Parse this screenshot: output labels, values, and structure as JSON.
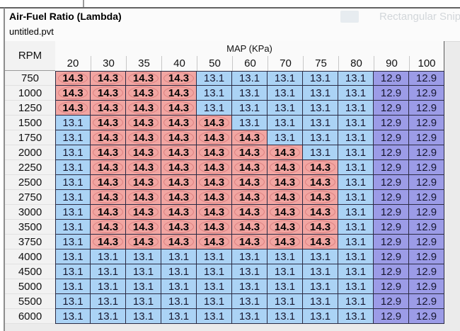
{
  "window": {
    "title": "Air-Fuel Ratio (Lambda)",
    "subtitle": "untitled.pvt"
  },
  "overlay": {
    "tooltip": "Rectangular Snip"
  },
  "colors": {
    "rich_bg": "#f2a6a2",
    "rich_oval": "#dd8282",
    "mid_bg": "#abd3f5",
    "lean_bg": "#9c9ce7",
    "grid_line": "#2b2b44",
    "row_header_bg": "#f2f2f2"
  },
  "value_styles": {
    "14.3": "rich",
    "13.1": "mid",
    "12.9": "lean"
  },
  "table": {
    "corner_label": "RPM",
    "span_label": "MAP (KPa)",
    "columns": [
      "20",
      "30",
      "35",
      "40",
      "50",
      "60",
      "70",
      "75",
      "80",
      "90",
      "100"
    ],
    "rows": [
      {
        "rpm": "750",
        "values": [
          "14.3",
          "14.3",
          "14.3",
          "14.3",
          "13.1",
          "13.1",
          "13.1",
          "13.1",
          "13.1",
          "12.9",
          "12.9"
        ]
      },
      {
        "rpm": "1000",
        "values": [
          "14.3",
          "14.3",
          "14.3",
          "14.3",
          "13.1",
          "13.1",
          "13.1",
          "13.1",
          "13.1",
          "12.9",
          "12.9"
        ]
      },
      {
        "rpm": "1250",
        "values": [
          "14.3",
          "14.3",
          "14.3",
          "14.3",
          "13.1",
          "13.1",
          "13.1",
          "13.1",
          "13.1",
          "12.9",
          "12.9"
        ]
      },
      {
        "rpm": "1500",
        "values": [
          "13.1",
          "14.3",
          "14.3",
          "14.3",
          "14.3",
          "13.1",
          "13.1",
          "13.1",
          "13.1",
          "12.9",
          "12.9"
        ]
      },
      {
        "rpm": "1750",
        "values": [
          "13.1",
          "14.3",
          "14.3",
          "14.3",
          "14.3",
          "14.3",
          "13.1",
          "13.1",
          "13.1",
          "12.9",
          "12.9"
        ]
      },
      {
        "rpm": "2000",
        "values": [
          "13.1",
          "14.3",
          "14.3",
          "14.3",
          "14.3",
          "14.3",
          "14.3",
          "13.1",
          "13.1",
          "12.9",
          "12.9"
        ]
      },
      {
        "rpm": "2250",
        "values": [
          "13.1",
          "14.3",
          "14.3",
          "14.3",
          "14.3",
          "14.3",
          "14.3",
          "14.3",
          "13.1",
          "12.9",
          "12.9"
        ]
      },
      {
        "rpm": "2500",
        "values": [
          "13.1",
          "14.3",
          "14.3",
          "14.3",
          "14.3",
          "14.3",
          "14.3",
          "14.3",
          "13.1",
          "12.9",
          "12.9"
        ]
      },
      {
        "rpm": "2750",
        "values": [
          "13.1",
          "14.3",
          "14.3",
          "14.3",
          "14.3",
          "14.3",
          "14.3",
          "14.3",
          "13.1",
          "12.9",
          "12.9"
        ]
      },
      {
        "rpm": "3000",
        "values": [
          "13.1",
          "14.3",
          "14.3",
          "14.3",
          "14.3",
          "14.3",
          "14.3",
          "14.3",
          "13.1",
          "12.9",
          "12.9"
        ]
      },
      {
        "rpm": "3500",
        "values": [
          "13.1",
          "14.3",
          "14.3",
          "14.3",
          "14.3",
          "14.3",
          "14.3",
          "14.3",
          "13.1",
          "12.9",
          "12.9"
        ]
      },
      {
        "rpm": "3750",
        "values": [
          "13.1",
          "14.3",
          "14.3",
          "14.3",
          "14.3",
          "14.3",
          "14.3",
          "14.3",
          "13.1",
          "12.9",
          "12.9"
        ]
      },
      {
        "rpm": "4000",
        "values": [
          "13.1",
          "13.1",
          "13.1",
          "13.1",
          "13.1",
          "13.1",
          "13.1",
          "13.1",
          "13.1",
          "12.9",
          "12.9"
        ]
      },
      {
        "rpm": "4500",
        "values": [
          "13.1",
          "13.1",
          "13.1",
          "13.1",
          "13.1",
          "13.1",
          "13.1",
          "13.1",
          "13.1",
          "12.9",
          "12.9"
        ]
      },
      {
        "rpm": "5000",
        "values": [
          "13.1",
          "13.1",
          "13.1",
          "13.1",
          "13.1",
          "13.1",
          "13.1",
          "13.1",
          "13.1",
          "12.9",
          "12.9"
        ]
      },
      {
        "rpm": "5500",
        "values": [
          "13.1",
          "13.1",
          "13.1",
          "13.1",
          "13.1",
          "13.1",
          "13.1",
          "13.1",
          "13.1",
          "12.9",
          "12.9"
        ]
      },
      {
        "rpm": "6000",
        "values": [
          "13.1",
          "13.1",
          "13.1",
          "13.1",
          "13.1",
          "13.1",
          "13.1",
          "13.1",
          "13.1",
          "12.9",
          "12.9"
        ]
      }
    ]
  }
}
